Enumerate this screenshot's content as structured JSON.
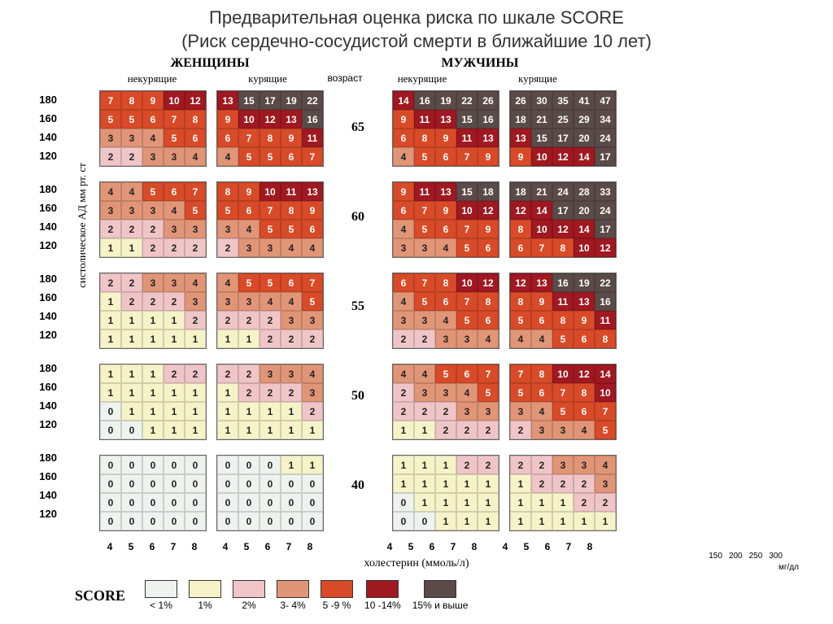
{
  "title_line1": "Предварительная оценка риска по шкале SCORE",
  "title_line2": "(Риск сердечно-сосудистой смерти в ближайшие 10 лет)",
  "genders": [
    "ЖЕНЩИНЫ",
    "МУЖЧИНЫ"
  ],
  "smoking": [
    "некурящие",
    "курящие",
    "некурящие",
    "курящие"
  ],
  "age_header": "возраст",
  "ages": [
    "65",
    "60",
    "55",
    "50",
    "40"
  ],
  "bp": [
    "180",
    "160",
    "140",
    "120"
  ],
  "y_axis": "систолическое АД    мм рт. ст",
  "chol": [
    "4",
    "5",
    "6",
    "7",
    "8"
  ],
  "chol_label": "холестерин (ммоль/л)",
  "mgdl": [
    "150",
    "200",
    "250",
    "300"
  ],
  "mgdl_label": "мг/дл",
  "legend_title": "SCORE",
  "legend": [
    {
      "color": "#eef3ef",
      "label": "< 1%"
    },
    {
      "color": "#f6f3c8",
      "label": "1%"
    },
    {
      "color": "#f0c5c7",
      "label": "2%"
    },
    {
      "color": "#e19577",
      "label": "3- 4%"
    },
    {
      "color": "#d84a28",
      "label": "5 -9 %"
    },
    {
      "color": "#a01820",
      "label": "10 -14%"
    },
    {
      "color": "#5a4a48",
      "label": "15% и выше"
    }
  ],
  "colors": {
    "0": "#eef3ef",
    "1": "#f6f3c8",
    "2": "#f0c5c7",
    "3": "#e19577",
    "4": "#e19577",
    "5": "#d84a28",
    "6": "#d84a28",
    "7": "#d84a28",
    "8": "#d84a28",
    "9": "#d84a28",
    "10": "#a01820",
    "11": "#a01820",
    "12": "#a01820",
    "13": "#a01820",
    "14": "#a01820",
    "15": "#5a4a48"
  },
  "text_light": "#ffffff",
  "text_dark": "#222222",
  "blocks": [
    [
      [
        7,
        8,
        9,
        10,
        12
      ],
      [
        5,
        5,
        6,
        7,
        8
      ],
      [
        3,
        3,
        4,
        5,
        6
      ],
      [
        2,
        2,
        3,
        3,
        4
      ]
    ],
    [
      [
        13,
        15,
        17,
        19,
        22
      ],
      [
        9,
        10,
        12,
        13,
        16
      ],
      [
        6,
        7,
        8,
        9,
        11
      ],
      [
        4,
        5,
        5,
        6,
        7
      ]
    ],
    [
      [
        14,
        16,
        19,
        22,
        26
      ],
      [
        9,
        11,
        13,
        15,
        16
      ],
      [
        6,
        8,
        9,
        11,
        13
      ],
      [
        4,
        5,
        6,
        7,
        9
      ]
    ],
    [
      [
        26,
        30,
        35,
        41,
        47
      ],
      [
        18,
        21,
        25,
        29,
        34
      ],
      [
        13,
        15,
        17,
        20,
        24
      ],
      [
        9,
        10,
        12,
        14,
        17
      ]
    ],
    [
      [
        4,
        4,
        5,
        6,
        7
      ],
      [
        3,
        3,
        3,
        4,
        5
      ],
      [
        2,
        2,
        2,
        3,
        3
      ],
      [
        1,
        1,
        2,
        2,
        2
      ]
    ],
    [
      [
        8,
        9,
        10,
        11,
        13
      ],
      [
        5,
        6,
        7,
        8,
        9
      ],
      [
        3,
        4,
        5,
        5,
        6
      ],
      [
        2,
        3,
        3,
        4,
        4
      ]
    ],
    [
      [
        9,
        11,
        13,
        15,
        18
      ],
      [
        6,
        7,
        9,
        10,
        12
      ],
      [
        4,
        5,
        6,
        7,
        9
      ],
      [
        3,
        3,
        4,
        5,
        6
      ]
    ],
    [
      [
        18,
        21,
        24,
        28,
        33
      ],
      [
        12,
        14,
        17,
        20,
        24
      ],
      [
        8,
        10,
        12,
        14,
        17
      ],
      [
        6,
        7,
        8,
        10,
        12
      ]
    ],
    [
      [
        2,
        2,
        3,
        3,
        4
      ],
      [
        1,
        2,
        2,
        2,
        3
      ],
      [
        1,
        1,
        1,
        1,
        2
      ],
      [
        1,
        1,
        1,
        1,
        1
      ]
    ],
    [
      [
        4,
        5,
        5,
        6,
        7
      ],
      [
        3,
        3,
        4,
        4,
        5
      ],
      [
        2,
        2,
        2,
        3,
        3
      ],
      [
        1,
        1,
        2,
        2,
        2
      ]
    ],
    [
      [
        6,
        7,
        8,
        10,
        12
      ],
      [
        4,
        5,
        6,
        7,
        8
      ],
      [
        3,
        3,
        4,
        5,
        6
      ],
      [
        2,
        2,
        3,
        3,
        4
      ]
    ],
    [
      [
        12,
        13,
        16,
        19,
        22
      ],
      [
        8,
        9,
        11,
        13,
        16
      ],
      [
        5,
        6,
        8,
        9,
        11
      ],
      [
        4,
        4,
        5,
        6,
        8
      ]
    ],
    [
      [
        1,
        1,
        1,
        2,
        2
      ],
      [
        1,
        1,
        1,
        1,
        1
      ],
      [
        0,
        1,
        1,
        1,
        1
      ],
      [
        0,
        0,
        1,
        1,
        1
      ]
    ],
    [
      [
        2,
        2,
        3,
        3,
        4
      ],
      [
        1,
        2,
        2,
        2,
        3
      ],
      [
        1,
        1,
        1,
        1,
        2
      ],
      [
        1,
        1,
        1,
        1,
        1
      ]
    ],
    [
      [
        4,
        4,
        5,
        6,
        7
      ],
      [
        2,
        3,
        3,
        4,
        5
      ],
      [
        2,
        2,
        2,
        3,
        3
      ],
      [
        1,
        1,
        2,
        2,
        2
      ]
    ],
    [
      [
        7,
        8,
        10,
        12,
        14
      ],
      [
        5,
        6,
        7,
        8,
        10
      ],
      [
        3,
        4,
        5,
        6,
        7
      ],
      [
        2,
        3,
        3,
        4,
        5
      ]
    ],
    [
      [
        0,
        0,
        0,
        0,
        0
      ],
      [
        0,
        0,
        0,
        0,
        0
      ],
      [
        0,
        0,
        0,
        0,
        0
      ],
      [
        0,
        0,
        0,
        0,
        0
      ]
    ],
    [
      [
        0,
        0,
        0,
        1,
        1
      ],
      [
        0,
        0,
        0,
        0,
        0
      ],
      [
        0,
        0,
        0,
        0,
        0
      ],
      [
        0,
        0,
        0,
        0,
        0
      ]
    ],
    [
      [
        1,
        1,
        1,
        2,
        2
      ],
      [
        1,
        1,
        1,
        1,
        1
      ],
      [
        0,
        1,
        1,
        1,
        1
      ],
      [
        0,
        0,
        1,
        1,
        1
      ]
    ],
    [
      [
        2,
        2,
        3,
        3,
        4
      ],
      [
        1,
        2,
        2,
        2,
        3
      ],
      [
        1,
        1,
        1,
        2,
        2
      ],
      [
        1,
        1,
        1,
        1,
        1
      ]
    ]
  ]
}
